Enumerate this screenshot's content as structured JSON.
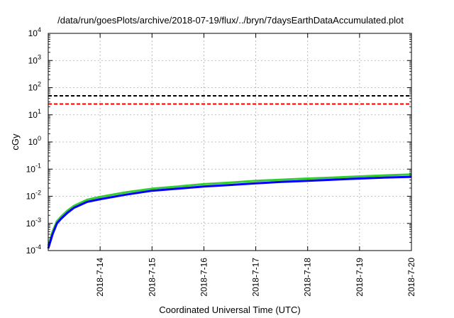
{
  "chart_data": {
    "type": "line",
    "title": "/data/run/goesPlots/archive/2018-07-19/flux/../bryn/7daysEarthDataAccumulated.plot",
    "xlabel": "Coordinated Universal Time (UTC)",
    "ylabel": "cGy",
    "y_scale": "log",
    "ylim": [
      0.0001,
      10000
    ],
    "xlim": [
      "2018-07-13",
      "2018-07-20"
    ],
    "x_ticks": [
      "2018-7-14",
      "2018-7-15",
      "2018-7-16",
      "2018-7-17",
      "2018-7-18",
      "2018-7-19",
      "2018-7-20"
    ],
    "y_ticks": [
      {
        "base": "10",
        "exp": "-4",
        "value": 0.0001
      },
      {
        "base": "10",
        "exp": "-3",
        "value": 0.001
      },
      {
        "base": "10",
        "exp": "-2",
        "value": 0.01
      },
      {
        "base": "10",
        "exp": "-1",
        "value": 0.1
      },
      {
        "base": "10",
        "exp": "0",
        "value": 1
      },
      {
        "base": "10",
        "exp": "1",
        "value": 10
      },
      {
        "base": "10",
        "exp": "2",
        "value": 100
      },
      {
        "base": "10",
        "exp": "3",
        "value": 1000
      },
      {
        "base": "10",
        "exp": "4",
        "value": 10000
      }
    ],
    "grid": true,
    "reference_lines": [
      {
        "value": 50,
        "color": "#000000",
        "style": "dashed"
      },
      {
        "value": 25,
        "color": "#ff0000",
        "style": "dashed"
      }
    ],
    "series": [
      {
        "color": "#33cc33",
        "x": [
          "2018-07-13 00:00",
          "2018-07-13 02:00",
          "2018-07-13 04:00",
          "2018-07-13 06:00",
          "2018-07-13 09:00",
          "2018-07-13 12:00",
          "2018-07-13 18:00",
          "2018-07-14 00:00",
          "2018-07-14 12:00",
          "2018-07-15 00:00",
          "2018-07-15 12:00",
          "2018-07-16 00:00",
          "2018-07-16 12:00",
          "2018-07-17 00:00",
          "2018-07-17 12:00",
          "2018-07-18 00:00",
          "2018-07-18 12:00",
          "2018-07-19 00:00",
          "2018-07-19 12:00",
          "2018-07-20 00:00"
        ],
        "values": [
          0.00015,
          0.0005,
          0.0012,
          0.0018,
          0.003,
          0.0045,
          0.0075,
          0.0095,
          0.014,
          0.019,
          0.023,
          0.028,
          0.032,
          0.037,
          0.041,
          0.045,
          0.049,
          0.054,
          0.059,
          0.064
        ]
      },
      {
        "color": "#0000ff",
        "x": [
          "2018-07-13 00:00",
          "2018-07-13 02:00",
          "2018-07-13 04:00",
          "2018-07-13 06:00",
          "2018-07-13 09:00",
          "2018-07-13 12:00",
          "2018-07-13 18:00",
          "2018-07-14 00:00",
          "2018-07-14 12:00",
          "2018-07-15 00:00",
          "2018-07-15 12:00",
          "2018-07-16 00:00",
          "2018-07-16 12:00",
          "2018-07-17 00:00",
          "2018-07-17 12:00",
          "2018-07-18 00:00",
          "2018-07-18 12:00",
          "2018-07-19 00:00",
          "2018-07-19 12:00",
          "2018-07-20 00:00"
        ],
        "values": [
          0.00012,
          0.0004,
          0.001,
          0.0015,
          0.0025,
          0.0038,
          0.0062,
          0.0078,
          0.0115,
          0.016,
          0.019,
          0.023,
          0.026,
          0.03,
          0.034,
          0.037,
          0.041,
          0.045,
          0.049,
          0.052
        ]
      }
    ]
  }
}
